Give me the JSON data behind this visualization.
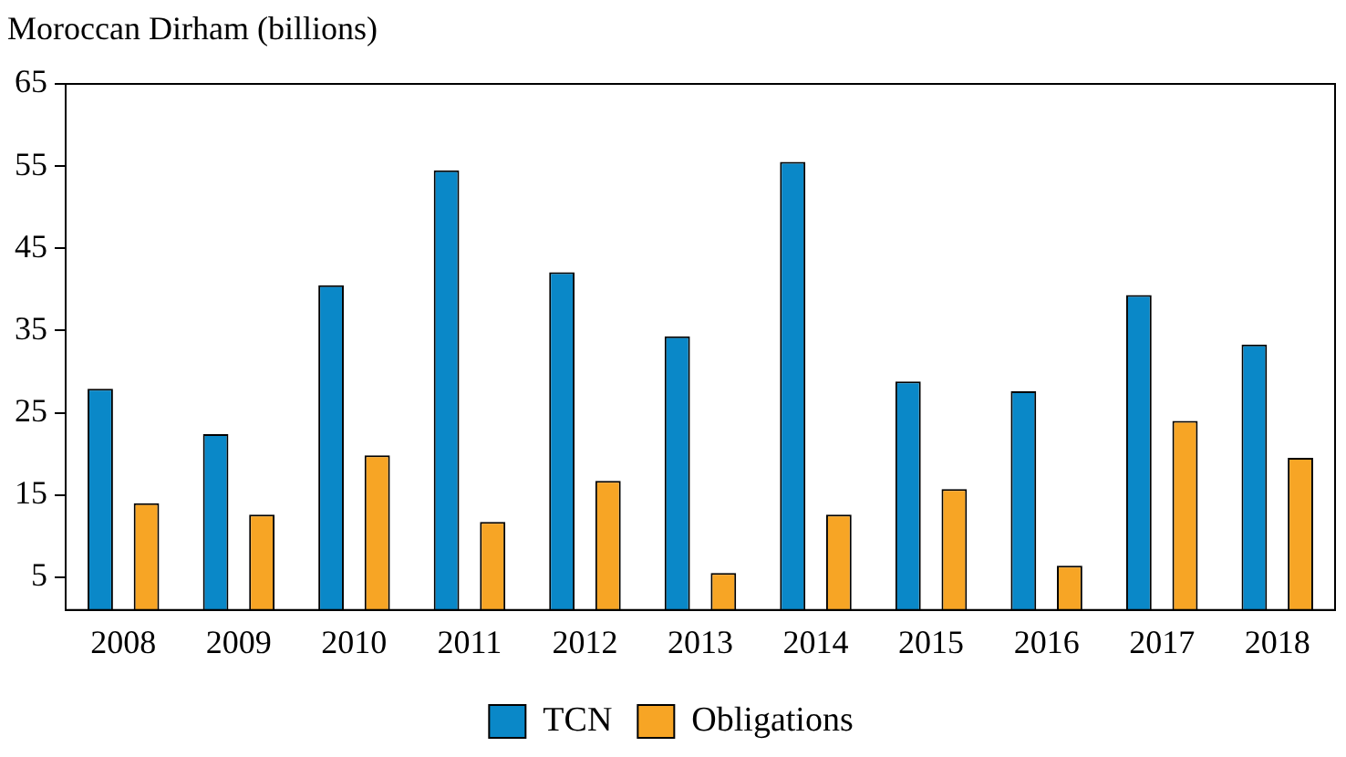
{
  "chart_data": {
    "type": "bar",
    "ylabel": "Moroccan Dirham (billions)",
    "categories": [
      "2008",
      "2009",
      "2010",
      "2011",
      "2012",
      "2013",
      "2014",
      "2015",
      "2016",
      "2017",
      "2018"
    ],
    "series": [
      {
        "name": "TCN",
        "color": "#0a88c8",
        "values": [
          27.9,
          22.4,
          40.5,
          54.5,
          42.1,
          34.3,
          55.5,
          28.8,
          27.6,
          39.3,
          33.3
        ]
      },
      {
        "name": "Obligations",
        "color": "#f7a525",
        "values": [
          14.0,
          12.6,
          19.8,
          11.7,
          16.7,
          5.5,
          12.6,
          15.7,
          6.4,
          24.0,
          19.5
        ]
      }
    ],
    "ylim": [
      1,
      65
    ],
    "yticks": [
      5,
      15,
      25,
      35,
      45,
      55,
      65
    ],
    "grid": false,
    "legend": "bottom"
  }
}
